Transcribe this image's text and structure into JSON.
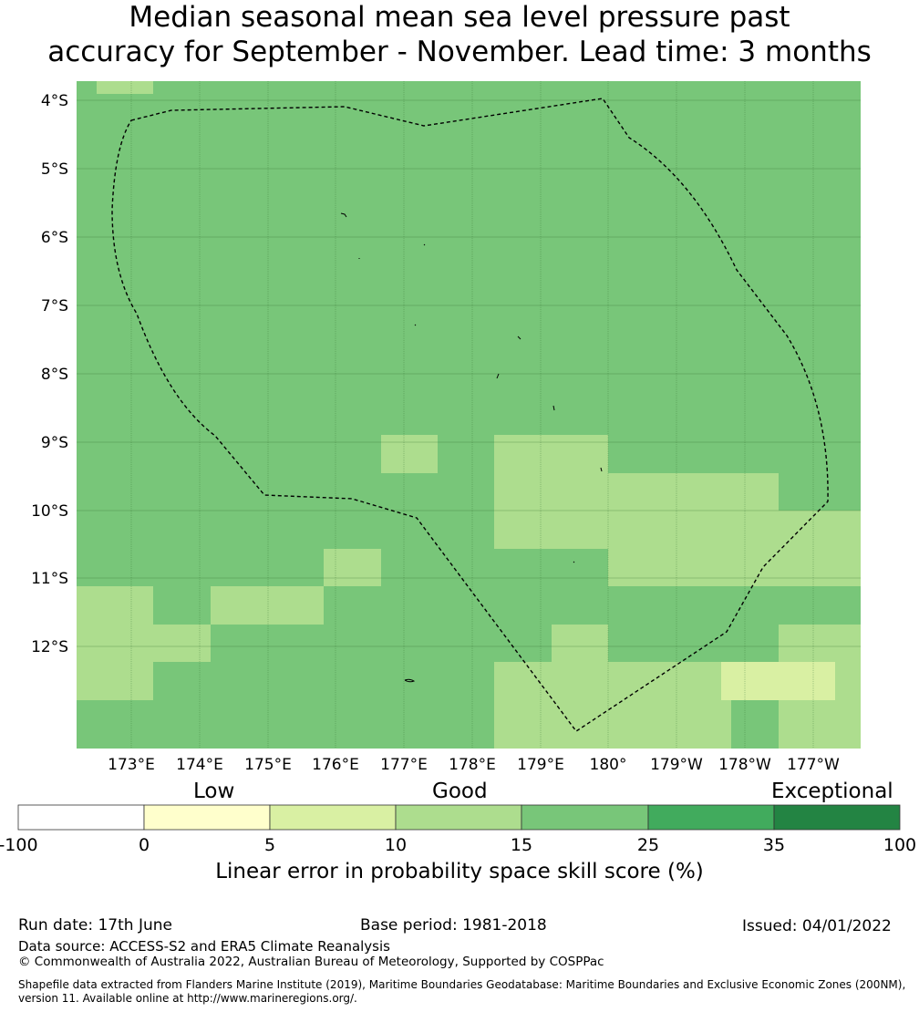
{
  "title_line1": "Median seasonal mean sea level pressure past",
  "title_line2": "accuracy for September - November. Lead time: 3 months",
  "map": {
    "lon_labels": [
      "173°E",
      "174°E",
      "175°E",
      "176°E",
      "177°E",
      "178°E",
      "179°E",
      "180°",
      "179°W",
      "178°W",
      "177°W"
    ],
    "lat_labels": [
      "4°S",
      "5°S",
      "6°S",
      "7°S",
      "8°S",
      "9°S",
      "10°S",
      "11°S",
      "12°S"
    ],
    "colors": {
      "0-5": "#ffffcc",
      "5-10": "#d9f0a3",
      "10-15": "#addd8e",
      "15-25": "#78c679",
      "25-35": "#41ab5d",
      "35-100": "#238443"
    },
    "background_class": "15-25"
  },
  "colorbar": {
    "categories": [
      "Low",
      "Good",
      "Exceptional"
    ],
    "ticks": [
      "-100",
      "0",
      "5",
      "10",
      "15",
      "25",
      "35",
      "100"
    ],
    "colors": [
      "#ffffff",
      "#ffffcc",
      "#d9f0a3",
      "#addd8e",
      "#78c679",
      "#41ab5d",
      "#238443"
    ],
    "label": "Linear error in probability space skill score (%)"
  },
  "footer": {
    "run_date": "Run date: 17th June",
    "base_period": "Base period: 1981-2018",
    "issued": "Issued: 04/01/2022",
    "data_source": "Data source: ACCESS-S2 and ERA5 Climate Reanalysis",
    "copyright": "© Commonwealth of Australia 2022, Australian Bureau of Meteorology, Supported by COSPPac",
    "shapefile_line1": "Shapefile data extracted from Flanders Marine Institute (2019), Maritime Boundaries Geodatabase: Maritime Boundaries and Exclusive Economic Zones (200NM),",
    "shapefile_line2": "version 11. Available online at http://www.marineregions.org/."
  }
}
